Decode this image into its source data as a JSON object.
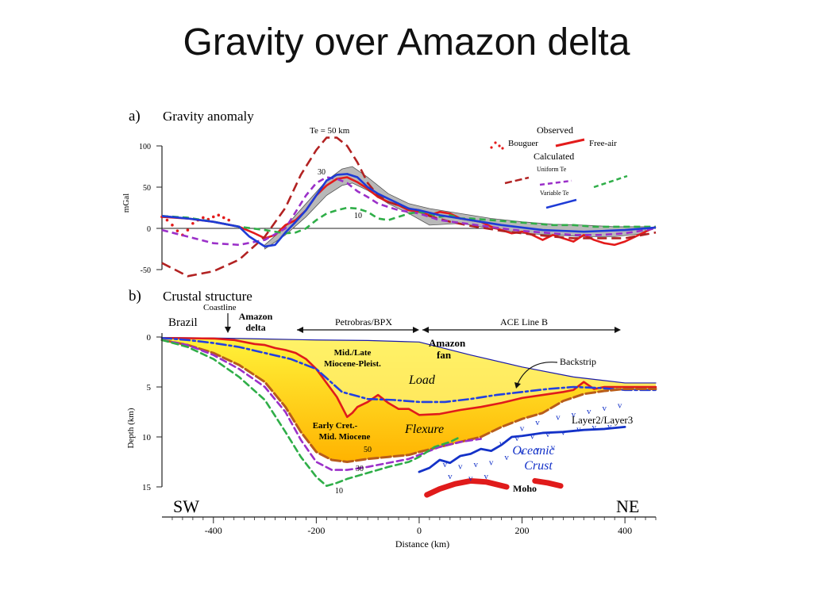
{
  "slide": {
    "title": "Gravity over Amazon delta"
  },
  "chart_data": [
    {
      "type": "line",
      "panel_label": "a)",
      "title": "Gravity anomaly",
      "ylabel": "mGal",
      "xlim": [
        -500,
        460
      ],
      "ylim": [
        -50,
        100
      ],
      "yticks": [
        "100",
        "50",
        "0",
        "-50"
      ],
      "grid": false,
      "legend": {
        "observed_label": "Observed",
        "bouguer_label": "Bouguer",
        "freeair_label": "Free-air",
        "calculated_label": "Calculated",
        "uniform_label": "Uniform Te",
        "variable_label": "Variable Te"
      },
      "annotations": {
        "te50": "Te = 50 km",
        "te30": "30",
        "te10": "10"
      },
      "colors": {
        "freeair": "#e31b1b",
        "bouguer": "#e31b1b",
        "te50": "#b22222",
        "te30": "#9b30c9",
        "te10": "#2fae48",
        "variable": "#1e3bd6",
        "envelope": "#b8b8b8"
      },
      "series": [
        {
          "name": "Bouguer",
          "style": "dotted",
          "x": [
            -500,
            -490,
            -480,
            -470,
            -460,
            -450,
            -440,
            -430,
            -420,
            -410,
            -400,
            -390,
            -380,
            -370
          ],
          "y": [
            14,
            10,
            4,
            -3,
            -8,
            -2,
            6,
            10,
            13,
            11,
            14,
            16,
            13,
            10
          ]
        },
        {
          "name": "Free-air",
          "x": [
            -500,
            -450,
            -400,
            -350,
            -320,
            -300,
            -280,
            -260,
            -240,
            -220,
            -200,
            -180,
            -160,
            -140,
            -120,
            -100,
            -80,
            -60,
            -40,
            -20,
            0,
            20,
            40,
            60,
            80,
            100,
            120,
            140,
            160,
            180,
            200,
            220,
            240,
            260,
            280,
            300,
            320,
            340,
            360,
            380,
            400,
            420,
            440,
            460
          ],
          "y": [
            14,
            12,
            8,
            2,
            -6,
            -12,
            -8,
            4,
            10,
            22,
            40,
            52,
            60,
            62,
            56,
            48,
            38,
            32,
            28,
            22,
            20,
            16,
            20,
            18,
            12,
            10,
            8,
            2,
            -2,
            -6,
            -4,
            -8,
            -14,
            -8,
            -12,
            -16,
            -8,
            -14,
            -18,
            -20,
            -16,
            -10,
            -4,
            2
          ]
        },
        {
          "name": "Uniform Te 50",
          "style": "dashed",
          "x": [
            -500,
            -450,
            -400,
            -350,
            -300,
            -260,
            -230,
            -200,
            -180,
            -160,
            -140,
            -120,
            -100,
            -80,
            -60,
            -40,
            -20,
            0,
            20,
            60,
            100,
            160,
            200,
            260,
            300,
            350,
            400,
            460
          ],
          "y": [
            -42,
            -58,
            -52,
            -38,
            -10,
            25,
            65,
            95,
            110,
            110,
            100,
            80,
            55,
            40,
            32,
            28,
            24,
            22,
            15,
            8,
            3,
            -3,
            -6,
            -10,
            -12,
            -12,
            -12,
            -5
          ]
        },
        {
          "name": "Uniform Te 30",
          "style": "dashed",
          "x": [
            -500,
            -450,
            -400,
            -350,
            -300,
            -260,
            -240,
            -220,
            -200,
            -180,
            -160,
            -140,
            -120,
            -100,
            -80,
            -60,
            -40,
            -20,
            0,
            40,
            100,
            160,
            200,
            260,
            300,
            350,
            400,
            460
          ],
          "y": [
            -2,
            -10,
            -18,
            -20,
            -14,
            0,
            20,
            40,
            55,
            62,
            60,
            55,
            45,
            38,
            30,
            26,
            22,
            20,
            18,
            10,
            5,
            0,
            -3,
            -6,
            -8,
            -8,
            -6,
            0
          ]
        },
        {
          "name": "Uniform Te 10",
          "style": "dashed",
          "x": [
            -500,
            -450,
            -400,
            -350,
            -300,
            -260,
            -240,
            -220,
            -200,
            -180,
            -160,
            -140,
            -120,
            -100,
            -80,
            -60,
            -40,
            -20,
            0,
            20,
            40,
            60,
            80,
            100,
            140,
            180,
            220,
            260,
            300,
            340,
            380,
            420,
            460
          ],
          "y": [
            15,
            13,
            8,
            2,
            -2,
            -6,
            -5,
            0,
            10,
            18,
            22,
            25,
            24,
            20,
            12,
            10,
            14,
            18,
            20,
            18,
            14,
            16,
            12,
            12,
            10,
            8,
            6,
            4,
            4,
            2,
            2,
            2,
            2
          ]
        },
        {
          "name": "Variable Te",
          "x": [
            -500,
            -450,
            -400,
            -350,
            -330,
            -300,
            -280,
            -260,
            -240,
            -220,
            -200,
            -180,
            -160,
            -140,
            -120,
            -100,
            -80,
            -60,
            -40,
            -20,
            0,
            40,
            80,
            120,
            160,
            200,
            240,
            280,
            320,
            360,
            400,
            460
          ],
          "y": [
            15,
            12,
            8,
            2,
            -10,
            -22,
            -20,
            -5,
            8,
            22,
            40,
            58,
            65,
            66,
            62,
            50,
            42,
            36,
            30,
            24,
            22,
            16,
            12,
            8,
            4,
            1,
            -2,
            -3,
            -4,
            -3,
            -2,
            1
          ]
        },
        {
          "name": "Envelope upper",
          "style": "band",
          "x": [
            -300,
            -260,
            -220,
            -180,
            -150,
            -130,
            -100,
            -60,
            -20,
            20,
            80,
            140,
            200,
            260,
            320,
            380,
            440
          ],
          "y": [
            -20,
            2,
            30,
            58,
            72,
            75,
            62,
            42,
            30,
            24,
            18,
            12,
            8,
            5,
            4,
            2,
            2
          ]
        },
        {
          "name": "Envelope lower",
          "style": "band",
          "x": [
            -300,
            -260,
            -220,
            -180,
            -150,
            -130,
            -100,
            -60,
            -20,
            20,
            80,
            140,
            200,
            260,
            320,
            380,
            440
          ],
          "y": [
            -25,
            -8,
            14,
            40,
            52,
            55,
            46,
            30,
            18,
            4,
            6,
            0,
            -6,
            -8,
            -10,
            -10,
            -6
          ]
        }
      ]
    },
    {
      "type": "line",
      "panel_label": "b)",
      "title": "Crustal structure",
      "xlabel": "Distance (km)",
      "ylabel": "Depth (km)",
      "xlim": [
        -500,
        460
      ],
      "ylim": [
        0,
        15
      ],
      "xticks": [
        "-400",
        "-200",
        "0",
        "200",
        "400"
      ],
      "yticks": [
        "0",
        "5",
        "10",
        "15"
      ],
      "grid": false,
      "labels": {
        "brazil": "Brazil",
        "coastline": "Coastline",
        "amazon_delta": "Amazon delta",
        "petrobras": "Petrobras/BPX",
        "ace": "ACE Line B",
        "amazon_fan": "Amazon fan",
        "backstrip": "Backstrip",
        "load": "Load",
        "flexure": "Flexure",
        "mid_late": "Mid./Late Miocene-Pleist.",
        "early_cret": "Early Cret.- Mid. Miocene",
        "layer23": "Layer2/Layer3",
        "oceanic": "Oceanic Crust",
        "moho": "Moho",
        "sw": "SW",
        "ne": "NE",
        "te50": "50",
        "te30": "30",
        "te10": "10"
      },
      "colors": {
        "seafloor": "#1a1aa8",
        "fill": "#ffd21a",
        "fill_dark": "#f5b400",
        "red": "#e01b1b",
        "blue_dash": "#2240e0",
        "green": "#2fae48",
        "purple": "#9b30c9",
        "brown": "#b85c1a",
        "moho": "#e01b1b",
        "oceanic": "#1432c8"
      },
      "series": [
        {
          "name": "Seafloor",
          "x": [
            -500,
            -400,
            -300,
            -200,
            -100,
            0,
            100,
            200,
            300,
            400,
            460
          ],
          "y": [
            0.05,
            0.1,
            0.2,
            0.3,
            0.35,
            0.5,
            1.8,
            3.0,
            4.0,
            4.6,
            4.6
          ]
        },
        {
          "name": "Mid/Late Miocene base",
          "x": [
            -500,
            -400,
            -360,
            -320,
            -300,
            -280,
            -260,
            -240,
            -220,
            -200,
            -180,
            -160,
            -150,
            -140,
            -130,
            -120,
            -100,
            -80,
            -60,
            -40,
            -20,
            0,
            40,
            80,
            120,
            160,
            200,
            240,
            280,
            300,
            320,
            340,
            360,
            400,
            460
          ],
          "y": [
            0.1,
            0.15,
            0.3,
            0.7,
            0.8,
            1.1,
            1.3,
            1.6,
            2.2,
            3.2,
            4.6,
            6.0,
            7.0,
            8.0,
            7.6,
            7.0,
            6.5,
            5.8,
            6.6,
            7.2,
            7.2,
            7.8,
            7.7,
            7.3,
            7.0,
            6.6,
            6.1,
            5.8,
            5.5,
            5.3,
            4.5,
            5.2,
            5.0,
            5.0,
            5.0
          ]
        },
        {
          "name": "Backstrip",
          "style": "dashdot",
          "x": [
            -500,
            -450,
            -400,
            -350,
            -300,
            -250,
            -200,
            -150,
            -100,
            -50,
            0,
            50,
            100,
            150,
            200,
            250,
            300,
            350,
            400,
            460
          ],
          "y": [
            0.1,
            0.3,
            0.6,
            1.0,
            1.6,
            2.2,
            3.2,
            5.5,
            6.2,
            6.3,
            6.5,
            6.5,
            6.2,
            5.8,
            5.5,
            5.2,
            5.0,
            5.1,
            5.3,
            5.3
          ]
        },
        {
          "name": "Flexure Te 50",
          "style": "dashed",
          "x": [
            -500,
            -450,
            -400,
            -350,
            -300,
            -260,
            -230,
            -200,
            -170,
            -140,
            -100,
            -60,
            -20,
            0,
            40,
            80,
            120,
            160,
            200,
            240,
            280,
            320,
            360,
            400,
            460
          ],
          "y": [
            0.3,
            0.8,
            1.6,
            2.8,
            4.5,
            7.0,
            9.5,
            11.5,
            12.3,
            12.5,
            12.2,
            12.0,
            11.8,
            11.5,
            11.0,
            10.5,
            10.0,
            9.0,
            8.2,
            7.6,
            6.4,
            5.7,
            5.4,
            5.2,
            5.2
          ]
        },
        {
          "name": "Flexure Te 30",
          "style": "dashed",
          "x": [
            -500,
            -450,
            -400,
            -350,
            -300,
            -260,
            -230,
            -200,
            -170,
            -140,
            -100,
            -60,
            -20,
            0,
            40,
            80,
            120
          ],
          "y": [
            0.3,
            0.8,
            1.8,
            3.2,
            5.0,
            7.5,
            10.3,
            12.5,
            13.3,
            13.3,
            13.0,
            12.6,
            12.2,
            11.8,
            11.0,
            10.5,
            10.2
          ]
        },
        {
          "name": "Flexure Te 10",
          "style": "dashed",
          "x": [
            -500,
            -450,
            -400,
            -350,
            -300,
            -260,
            -230,
            -200,
            -180,
            -160,
            -140,
            -100,
            -60,
            -20,
            0,
            30,
            60,
            80
          ],
          "y": [
            0.3,
            1.0,
            2.2,
            4.0,
            6.3,
            9.5,
            12.0,
            14.0,
            14.9,
            14.6,
            14.2,
            13.6,
            13.0,
            12.5,
            12.0,
            11.0,
            10.5,
            10.0
          ]
        },
        {
          "name": "Layer2/Layer3",
          "x": [
            0,
            20,
            40,
            60,
            80,
            100,
            120,
            140,
            160,
            180,
            200,
            240,
            280,
            320,
            360,
            400
          ],
          "y": [
            13.5,
            13.1,
            12.3,
            12.6,
            11.9,
            11.7,
            11.2,
            11.4,
            10.8,
            10.0,
            9.9,
            9.6,
            9.5,
            9.3,
            9.2,
            9.0
          ]
        },
        {
          "name": "Moho west",
          "x": [
            15,
            40,
            70,
            100,
            130,
            170
          ],
          "y": [
            15.8,
            15.2,
            14.7,
            14.4,
            14.5,
            15.0
          ]
        },
        {
          "name": "Moho east",
          "x": [
            225,
            250,
            275
          ],
          "y": [
            14.4,
            14.6,
            14.9
          ]
        }
      ]
    }
  ]
}
